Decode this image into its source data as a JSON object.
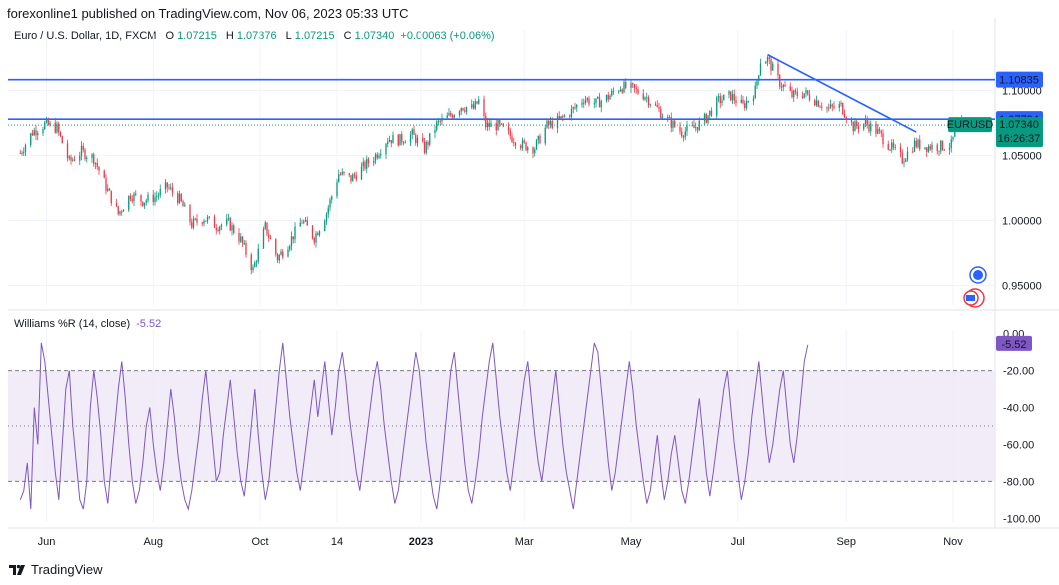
{
  "header": {
    "text": "forexonline1 published on TradingView.com, Nov 06, 2023 05:33 UTC"
  },
  "symbol": {
    "name": "Euro / U.S. Dollar, 1D, FXCM",
    "open_label": "O",
    "open": "1.07215",
    "high_label": "H",
    "high": "1.07376",
    "low_label": "L",
    "low": "1.07215",
    "close_label": "C",
    "close": "1.07340",
    "change": "+0.00063 (+0.06%)"
  },
  "footer": {
    "brand": "TradingView"
  },
  "colors": {
    "up": "#089981",
    "down": "#f23645",
    "level": "#2962ff",
    "indicator": "#7e57c2",
    "band": "#ede7f6"
  },
  "chart_data": [
    {
      "type": "candlestick",
      "title": "Euro / U.S. Dollar, 1D, FXCM",
      "x_ticks": [
        "Jun",
        "Aug",
        "Oct",
        "14",
        "2023",
        "Mar",
        "May",
        "Jul",
        "Sep",
        "Nov"
      ],
      "y_ticks": [
        "1.10000",
        "1.05000",
        "1.00000",
        "0.95000"
      ],
      "ylim": [
        0.935,
        1.135
      ],
      "horizontal_levels": [
        {
          "value": 1.10835,
          "label": "1.10835"
        },
        {
          "value": 1.07794,
          "label": "1.07794"
        }
      ],
      "last_price": {
        "symbol": "EURUSD",
        "value": "1.07340",
        "countdown": "16:26:37"
      },
      "trendline": {
        "from": [
          "2023-07-18",
          1.1276
        ],
        "to": [
          "2023-10-11",
          1.068
        ]
      },
      "close_series": [
        [
          "2022-05-17",
          1.052
        ],
        [
          "2022-05-24",
          1.068
        ],
        [
          "2022-05-31",
          1.074
        ],
        [
          "2022-06-07",
          1.071
        ],
        [
          "2022-06-14",
          1.045
        ],
        [
          "2022-06-21",
          1.053
        ],
        [
          "2022-06-28",
          1.048
        ],
        [
          "2022-07-05",
          1.026
        ],
        [
          "2022-07-12",
          1.005
        ],
        [
          "2022-07-19",
          1.02
        ],
        [
          "2022-07-26",
          1.015
        ],
        [
          "2022-08-02",
          1.018
        ],
        [
          "2022-08-09",
          1.026
        ],
        [
          "2022-08-16",
          1.016
        ],
        [
          "2022-08-23",
          0.997
        ],
        [
          "2022-08-30",
          1.002
        ],
        [
          "2022-09-06",
          0.996
        ],
        [
          "2022-09-13",
          0.998
        ],
        [
          "2022-09-20",
          0.985
        ],
        [
          "2022-09-27",
          0.962
        ],
        [
          "2022-10-04",
          0.995
        ],
        [
          "2022-10-11",
          0.971
        ],
        [
          "2022-10-18",
          0.984
        ],
        [
          "2022-10-25",
          1.0
        ],
        [
          "2022-11-01",
          0.987
        ],
        [
          "2022-11-08",
          1.006
        ],
        [
          "2022-11-15",
          1.036
        ],
        [
          "2022-11-22",
          1.032
        ],
        [
          "2022-11-29",
          1.041
        ],
        [
          "2022-12-06",
          1.05
        ],
        [
          "2022-12-13",
          1.063
        ],
        [
          "2022-12-20",
          1.062
        ],
        [
          "2022-12-27",
          1.066
        ],
        [
          "2023-01-03",
          1.055
        ],
        [
          "2023-01-10",
          1.074
        ],
        [
          "2023-01-17",
          1.08
        ],
        [
          "2023-01-24",
          1.088
        ],
        [
          "2023-01-31",
          1.086
        ],
        [
          "2023-02-03",
          1.092
        ],
        [
          "2023-02-07",
          1.073
        ],
        [
          "2023-02-14",
          1.073
        ],
        [
          "2023-02-21",
          1.065
        ],
        [
          "2023-02-28",
          1.058
        ],
        [
          "2023-03-07",
          1.056
        ],
        [
          "2023-03-14",
          1.073
        ],
        [
          "2023-03-21",
          1.077
        ],
        [
          "2023-03-28",
          1.084
        ],
        [
          "2023-04-04",
          1.094
        ],
        [
          "2023-04-11",
          1.09
        ],
        [
          "2023-04-18",
          1.095
        ],
        [
          "2023-04-25",
          1.103
        ],
        [
          "2023-05-02",
          1.101
        ],
        [
          "2023-05-09",
          1.096
        ],
        [
          "2023-05-16",
          1.086
        ],
        [
          "2023-05-23",
          1.076
        ],
        [
          "2023-05-30",
          1.068
        ],
        [
          "2023-06-06",
          1.071
        ],
        [
          "2023-06-13",
          1.079
        ],
        [
          "2023-06-20",
          1.092
        ],
        [
          "2023-06-27",
          1.096
        ],
        [
          "2023-07-04",
          1.088
        ],
        [
          "2023-07-11",
          1.1
        ],
        [
          "2023-07-14",
          1.123
        ],
        [
          "2023-07-18",
          1.124
        ],
        [
          "2023-07-25",
          1.106
        ],
        [
          "2023-08-01",
          1.096
        ],
        [
          "2023-08-08",
          1.098
        ],
        [
          "2023-08-15",
          1.092
        ],
        [
          "2023-08-22",
          1.086
        ],
        [
          "2023-08-29",
          1.088
        ],
        [
          "2023-09-05",
          1.072
        ],
        [
          "2023-09-12",
          1.075
        ],
        [
          "2023-09-19",
          1.068
        ],
        [
          "2023-09-26",
          1.057
        ],
        [
          "2023-10-03",
          1.047
        ],
        [
          "2023-10-10",
          1.059
        ],
        [
          "2023-10-17",
          1.057
        ],
        [
          "2023-10-24",
          1.057
        ],
        [
          "2023-10-31",
          1.058
        ],
        [
          "2023-11-03",
          1.072
        ],
        [
          "2023-11-06",
          1.0734
        ]
      ]
    },
    {
      "type": "line",
      "title": "Williams %R (14, close)",
      "current_value": "-5.52",
      "x_ticks": [
        "Jun",
        "Aug",
        "Oct",
        "14",
        "2023",
        "Mar",
        "May",
        "Jul",
        "Sep",
        "Nov"
      ],
      "y_ticks": [
        "0.00",
        "-20.00",
        "-40.00",
        "-60.00",
        "-80.00",
        "-100.00"
      ],
      "ylim": [
        -102,
        2
      ],
      "bands": [
        -20,
        -50,
        -80
      ],
      "x_start": "2022-05-17",
      "x_step_days": 2,
      "values": [
        -90,
        -85,
        -70,
        -95,
        -40,
        -60,
        -5,
        -15,
        -35,
        -55,
        -75,
        -90,
        -60,
        -30,
        -20,
        -50,
        -70,
        -90,
        -95,
        -80,
        -40,
        -20,
        -35,
        -55,
        -80,
        -92,
        -70,
        -50,
        -30,
        -15,
        -35,
        -60,
        -80,
        -92,
        -85,
        -70,
        -50,
        -40,
        -60,
        -75,
        -85,
        -70,
        -50,
        -30,
        -45,
        -65,
        -80,
        -90,
        -95,
        -85,
        -70,
        -55,
        -35,
        -20,
        -40,
        -60,
        -80,
        -75,
        -55,
        -40,
        -25,
        -45,
        -65,
        -80,
        -88,
        -70,
        -50,
        -30,
        -55,
        -75,
        -90,
        -80,
        -60,
        -40,
        -20,
        -5,
        -25,
        -45,
        -60,
        -75,
        -85,
        -70,
        -55,
        -40,
        -25,
        -45,
        -30,
        -15,
        -35,
        -55,
        -40,
        -20,
        -10,
        -25,
        -45,
        -60,
        -75,
        -85,
        -70,
        -55,
        -40,
        -25,
        -15,
        -30,
        -50,
        -65,
        -80,
        -92,
        -85,
        -70,
        -55,
        -40,
        -25,
        -10,
        -20,
        -40,
        -60,
        -75,
        -88,
        -95,
        -80,
        -60,
        -40,
        -20,
        -10,
        -30,
        -50,
        -70,
        -85,
        -92,
        -80,
        -65,
        -45,
        -30,
        -15,
        -5,
        -25,
        -45,
        -60,
        -75,
        -85,
        -70,
        -55,
        -40,
        -25,
        -15,
        -35,
        -55,
        -70,
        -80,
        -65,
        -50,
        -35,
        -20,
        -40,
        -60,
        -75,
        -85,
        -95,
        -80,
        -65,
        -50,
        -35,
        -20,
        -5,
        -10,
        -30,
        -50,
        -70,
        -85,
        -75,
        -60,
        -45,
        -30,
        -15,
        -30,
        -50,
        -65,
        -80,
        -92,
        -85,
        -70,
        -55,
        -75,
        -90,
        -80,
        -65,
        -55,
        -70,
        -85,
        -92,
        -80,
        -65,
        -50,
        -35,
        -55,
        -75,
        -88,
        -75,
        -60,
        -45,
        -30,
        -20,
        -40,
        -60,
        -75,
        -90,
        -80,
        -65,
        -45,
        -30,
        -15,
        -35,
        -55,
        -70,
        -60,
        -45,
        -30,
        -20,
        -40,
        -60,
        -70,
        -55,
        -35,
        -15,
        -6
      ]
    }
  ]
}
